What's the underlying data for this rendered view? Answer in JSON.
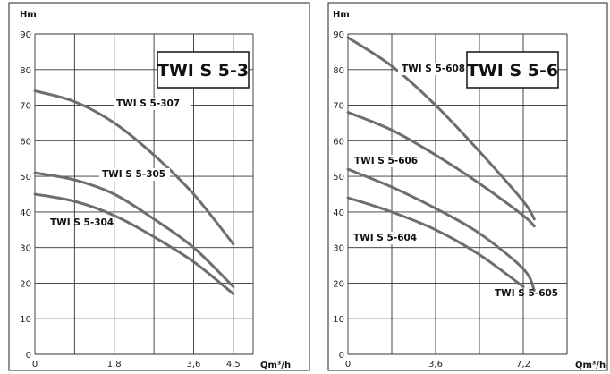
{
  "chart_data": [
    {
      "type": "line",
      "title": "TWI S 5-3",
      "ylabel": "Hm",
      "xlabel": "Qm³/h",
      "xlim": [
        0,
        4.95
      ],
      "ylim": [
        0,
        90
      ],
      "x_ticks": [
        "0",
        "1,8",
        "3,6",
        "4,5"
      ],
      "y_ticks": [
        "0",
        "10",
        "20",
        "30",
        "40",
        "50",
        "60",
        "70",
        "80",
        "90"
      ],
      "grid": true,
      "series": [
        {
          "name": "TWI S 5-307",
          "x": [
            0,
            0.9,
            1.8,
            2.7,
            3.6,
            4.5
          ],
          "y": [
            74,
            71,
            65,
            56,
            45,
            31
          ]
        },
        {
          "name": "TWI S 5-305",
          "x": [
            0,
            0.9,
            1.8,
            2.7,
            3.6,
            4.5
          ],
          "y": [
            51,
            49,
            45,
            38,
            30,
            19
          ]
        },
        {
          "name": "TWI S 5-304",
          "x": [
            0,
            0.9,
            1.8,
            2.7,
            3.6,
            4.5
          ],
          "y": [
            45,
            43,
            39,
            33,
            26,
            17
          ]
        }
      ]
    },
    {
      "type": "line",
      "title": "TWI S 5-6",
      "ylabel": "Hm",
      "xlabel": "Qm³/h",
      "xlim": [
        0,
        9
      ],
      "ylim": [
        0,
        90
      ],
      "x_ticks": [
        "0",
        "3,6",
        "7,2"
      ],
      "y_ticks": [
        "0",
        "10",
        "20",
        "30",
        "40",
        "50",
        "60",
        "70",
        "80",
        "90"
      ],
      "grid": true,
      "series": [
        {
          "name": "TWI S 5-608",
          "x": [
            0,
            1.8,
            3.6,
            5.4,
            7.2,
            7.65
          ],
          "y": [
            89,
            81,
            70,
            57,
            43,
            38
          ]
        },
        {
          "name": "TWI S 5-606",
          "x": [
            0,
            1.8,
            3.6,
            5.4,
            7.2,
            7.65
          ],
          "y": [
            68,
            63,
            56,
            48,
            39,
            36
          ]
        },
        {
          "name": "TWI S 5-605",
          "x": [
            0,
            1.8,
            3.6,
            5.4,
            7.2,
            7.65
          ],
          "y": [
            52,
            47,
            41,
            34,
            24,
            18
          ]
        },
        {
          "name": "TWI S 5-604",
          "x": [
            0,
            1.8,
            3.6,
            5.4,
            7.2
          ],
          "y": [
            44,
            40,
            35,
            28,
            19
          ]
        }
      ]
    }
  ]
}
